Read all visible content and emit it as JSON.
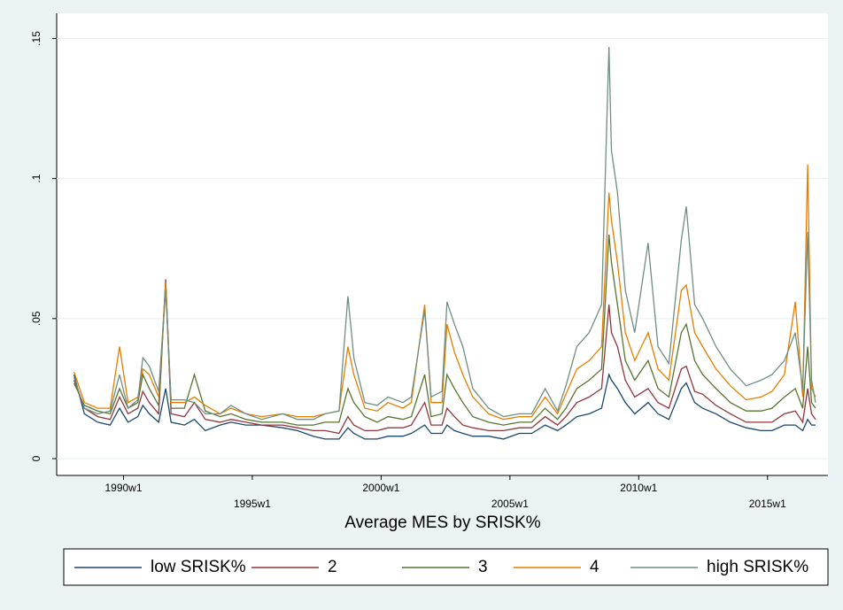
{
  "chart_data": {
    "type": "line",
    "title": "Average MES by SRISK%",
    "x": [
      "1988w5",
      "1988w26",
      "1989w1",
      "1989w26",
      "1989w45",
      "1990w10",
      "1990w30",
      "1990w40",
      "1991w1",
      "1991w20",
      "1991w34",
      "1991w45",
      "1992w20",
      "1992w40",
      "1993w10",
      "1993w40",
      "1994w10",
      "1994w40",
      "1995w20",
      "1996w10",
      "1996w40",
      "1997w20",
      "1997w44",
      "1998w20",
      "1998w38",
      "1998w50",
      "1999w20",
      "1999w45",
      "2000w15",
      "2000w45",
      "2001w10",
      "2001w37",
      "2001w50",
      "2002w20",
      "2002w30",
      "2002w45",
      "2003w10",
      "2003w30",
      "2004w10",
      "2004w40",
      "2005w20",
      "2005w45",
      "2006w20",
      "2006w45",
      "2007w10",
      "2007w32",
      "2008w5",
      "2008w30",
      "2008w45",
      "2008w50",
      "2009w10",
      "2009w26",
      "2009w45",
      "2010w20",
      "2010w40",
      "2011w10",
      "2011w35",
      "2011w45",
      "2012w10",
      "2012w26",
      "2013w1",
      "2013w30",
      "2014w10",
      "2014w40",
      "2015w10",
      "2015w35",
      "2016w5",
      "2016w20",
      "2016w30",
      "2016w38",
      "2016w46"
    ],
    "series": [
      {
        "name": "low SRISK%",
        "color": "#1a476f",
        "values": [
          0.03,
          0.016,
          0.013,
          0.012,
          0.018,
          0.013,
          0.015,
          0.019,
          0.016,
          0.013,
          0.025,
          0.013,
          0.012,
          0.014,
          0.01,
          0.012,
          0.013,
          0.012,
          0.012,
          0.011,
          0.01,
          0.008,
          0.007,
          0.007,
          0.011,
          0.009,
          0.007,
          0.007,
          0.008,
          0.008,
          0.009,
          0.012,
          0.009,
          0.009,
          0.012,
          0.01,
          0.009,
          0.008,
          0.008,
          0.007,
          0.009,
          0.009,
          0.012,
          0.01,
          0.012,
          0.015,
          0.016,
          0.018,
          0.03,
          0.028,
          0.025,
          0.02,
          0.016,
          0.02,
          0.016,
          0.014,
          0.025,
          0.027,
          0.02,
          0.018,
          0.016,
          0.013,
          0.011,
          0.01,
          0.01,
          0.012,
          0.012,
          0.01,
          0.014,
          0.012,
          0.012
        ]
      },
      {
        "name": "2",
        "color": "#90353b",
        "values": [
          0.028,
          0.018,
          0.015,
          0.014,
          0.022,
          0.016,
          0.018,
          0.024,
          0.02,
          0.016,
          0.064,
          0.016,
          0.015,
          0.02,
          0.014,
          0.013,
          0.014,
          0.013,
          0.012,
          0.012,
          0.011,
          0.01,
          0.01,
          0.009,
          0.015,
          0.012,
          0.01,
          0.01,
          0.011,
          0.011,
          0.012,
          0.02,
          0.012,
          0.012,
          0.018,
          0.015,
          0.012,
          0.011,
          0.01,
          0.01,
          0.011,
          0.011,
          0.015,
          0.012,
          0.015,
          0.02,
          0.022,
          0.025,
          0.055,
          0.045,
          0.04,
          0.028,
          0.022,
          0.025,
          0.02,
          0.018,
          0.032,
          0.033,
          0.024,
          0.023,
          0.019,
          0.016,
          0.013,
          0.013,
          0.013,
          0.016,
          0.017,
          0.013,
          0.025,
          0.016,
          0.014
        ]
      },
      {
        "name": "3",
        "color": "#55752f",
        "values": [
          0.027,
          0.019,
          0.017,
          0.016,
          0.025,
          0.018,
          0.02,
          0.03,
          0.025,
          0.019,
          0.063,
          0.018,
          0.018,
          0.03,
          0.017,
          0.015,
          0.016,
          0.014,
          0.013,
          0.013,
          0.012,
          0.012,
          0.013,
          0.013,
          0.025,
          0.02,
          0.015,
          0.013,
          0.015,
          0.014,
          0.015,
          0.03,
          0.015,
          0.016,
          0.03,
          0.025,
          0.02,
          0.015,
          0.013,
          0.012,
          0.013,
          0.013,
          0.018,
          0.014,
          0.018,
          0.025,
          0.028,
          0.032,
          0.08,
          0.07,
          0.055,
          0.035,
          0.028,
          0.035,
          0.025,
          0.022,
          0.045,
          0.048,
          0.035,
          0.03,
          0.025,
          0.02,
          0.017,
          0.017,
          0.018,
          0.022,
          0.025,
          0.018,
          0.04,
          0.02,
          0.018
        ]
      },
      {
        "name": "4",
        "color": "#e37e00",
        "values": [
          0.031,
          0.02,
          0.018,
          0.018,
          0.04,
          0.02,
          0.022,
          0.032,
          0.03,
          0.022,
          0.063,
          0.02,
          0.02,
          0.022,
          0.019,
          0.016,
          0.018,
          0.016,
          0.015,
          0.016,
          0.015,
          0.015,
          0.016,
          0.017,
          0.04,
          0.03,
          0.018,
          0.017,
          0.02,
          0.018,
          0.02,
          0.055,
          0.02,
          0.02,
          0.048,
          0.038,
          0.03,
          0.022,
          0.016,
          0.014,
          0.015,
          0.015,
          0.022,
          0.016,
          0.023,
          0.032,
          0.035,
          0.04,
          0.095,
          0.085,
          0.07,
          0.045,
          0.035,
          0.045,
          0.032,
          0.028,
          0.06,
          0.062,
          0.045,
          0.04,
          0.032,
          0.026,
          0.021,
          0.022,
          0.024,
          0.03,
          0.056,
          0.022,
          0.105,
          0.025,
          0.022
        ]
      },
      {
        "name": "high SRISK%",
        "color": "#6e8e84",
        "values": [
          0.029,
          0.018,
          0.016,
          0.017,
          0.03,
          0.018,
          0.021,
          0.036,
          0.033,
          0.024,
          0.06,
          0.021,
          0.021,
          0.02,
          0.016,
          0.016,
          0.019,
          0.016,
          0.014,
          0.016,
          0.014,
          0.014,
          0.016,
          0.017,
          0.058,
          0.036,
          0.02,
          0.019,
          0.022,
          0.02,
          0.022,
          0.053,
          0.022,
          0.024,
          0.056,
          0.048,
          0.04,
          0.025,
          0.018,
          0.015,
          0.016,
          0.016,
          0.025,
          0.017,
          0.026,
          0.04,
          0.045,
          0.055,
          0.147,
          0.11,
          0.095,
          0.06,
          0.045,
          0.077,
          0.04,
          0.034,
          0.078,
          0.09,
          0.055,
          0.05,
          0.04,
          0.032,
          0.026,
          0.028,
          0.03,
          0.035,
          0.045,
          0.025,
          0.081,
          0.028,
          0.02
        ]
      }
    ],
    "xlim": [
      "1987w22",
      "2017w19"
    ],
    "xticks": [
      "1990w1",
      "1995w1",
      "2000w1",
      "2005w1",
      "2010w1",
      "2015w1"
    ],
    "ylim": [
      -0.006,
      0.159
    ],
    "yticks": [
      0,
      {
        "value": 0.05,
        "label": ".05"
      },
      {
        "value": 0.1,
        "label": ".1"
      },
      {
        "value": 0.15,
        "label": ".15"
      }
    ],
    "grid": true
  }
}
